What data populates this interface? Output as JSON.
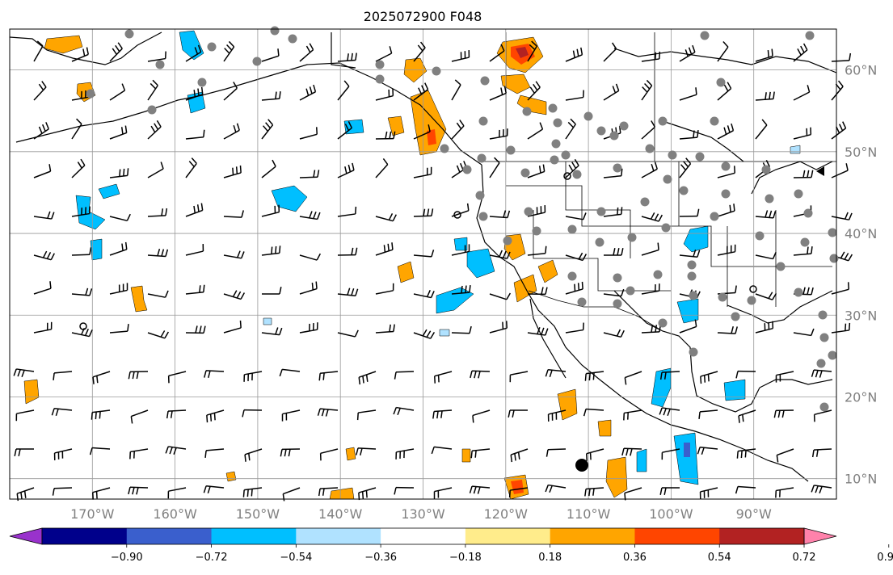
{
  "title": "2025072900 F048",
  "map": {
    "lon_labels": [
      "170°W",
      "160°W",
      "150°W",
      "140°W",
      "130°W",
      "120°W",
      "110°W",
      "100°W",
      "90°W"
    ],
    "lat_labels": [
      "60°N",
      "50°N",
      "40°N",
      "30°N",
      "20°N",
      "10°N"
    ],
    "extent": {
      "lon": [
        -180,
        -80
      ],
      "lat": [
        7.5,
        65
      ]
    },
    "gridlines": true,
    "barb_color": "#000000",
    "station_marker_color": "#808080"
  },
  "colorbar": {
    "colors": [
      "#9932cc",
      "#00008b",
      "#3a5fcd",
      "#00bfff",
      "#b0e2ff",
      "#ffffff",
      "#ffec8b",
      "#ffa500",
      "#ff4500",
      "#b22222",
      "#ff82ab"
    ],
    "labels": [
      "−0.90",
      "−0.72",
      "−0.54",
      "−0.36",
      "−0.18",
      "0.18",
      "0.36",
      "0.54",
      "0.72",
      "0.90"
    ],
    "extend": "both"
  }
}
